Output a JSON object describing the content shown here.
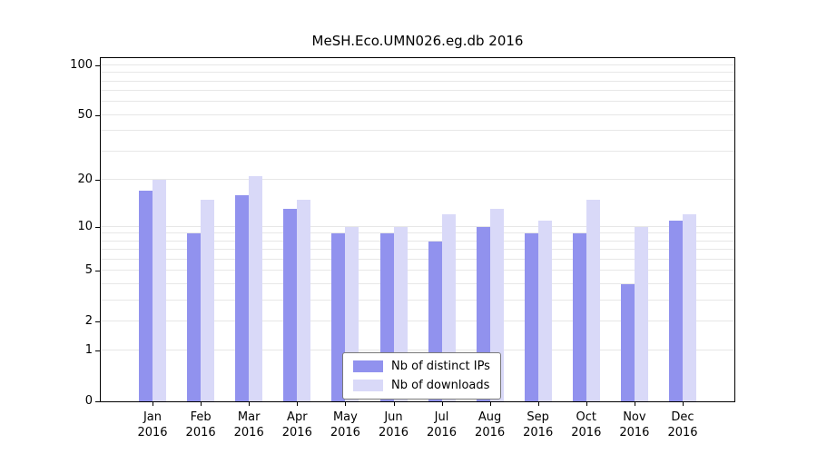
{
  "title": "MeSH.Eco.UMN026.eg.db 2016",
  "chart_data": {
    "type": "bar",
    "title": "MeSH.Eco.UMN026.eg.db 2016",
    "categories": [
      "Jan 2016",
      "Feb 2016",
      "Mar 2016",
      "Apr 2016",
      "May 2016",
      "Jun 2016",
      "Jul 2016",
      "Aug 2016",
      "Sep 2016",
      "Oct 2016",
      "Nov 2016",
      "Dec 2016"
    ],
    "series": [
      {
        "name": "Nb of distinct IPs",
        "color": "#9192ee",
        "values": [
          17,
          9,
          16,
          13,
          9,
          9,
          8,
          10,
          9,
          9,
          4,
          11
        ]
      },
      {
        "name": "Nb of downloads",
        "color": "#d9d9f8",
        "values": [
          20,
          15,
          21,
          15,
          10,
          10,
          12,
          13,
          11,
          15,
          10,
          12
        ]
      }
    ],
    "xlabel": "",
    "ylabel": "",
    "yscale": "log1p",
    "ylim": [
      0,
      100
    ],
    "yticks": [
      0,
      1,
      2,
      5,
      10,
      20,
      50,
      100
    ],
    "gridlines": [
      1,
      2,
      3,
      4,
      5,
      6,
      7,
      8,
      9,
      10,
      20,
      30,
      40,
      50,
      60,
      70,
      80,
      90,
      100
    ],
    "grid": "on",
    "legend_position": "bottom-center"
  },
  "legend": {
    "items": [
      {
        "label": "Nb of distinct IPs"
      },
      {
        "label": "Nb of downloads"
      }
    ]
  }
}
